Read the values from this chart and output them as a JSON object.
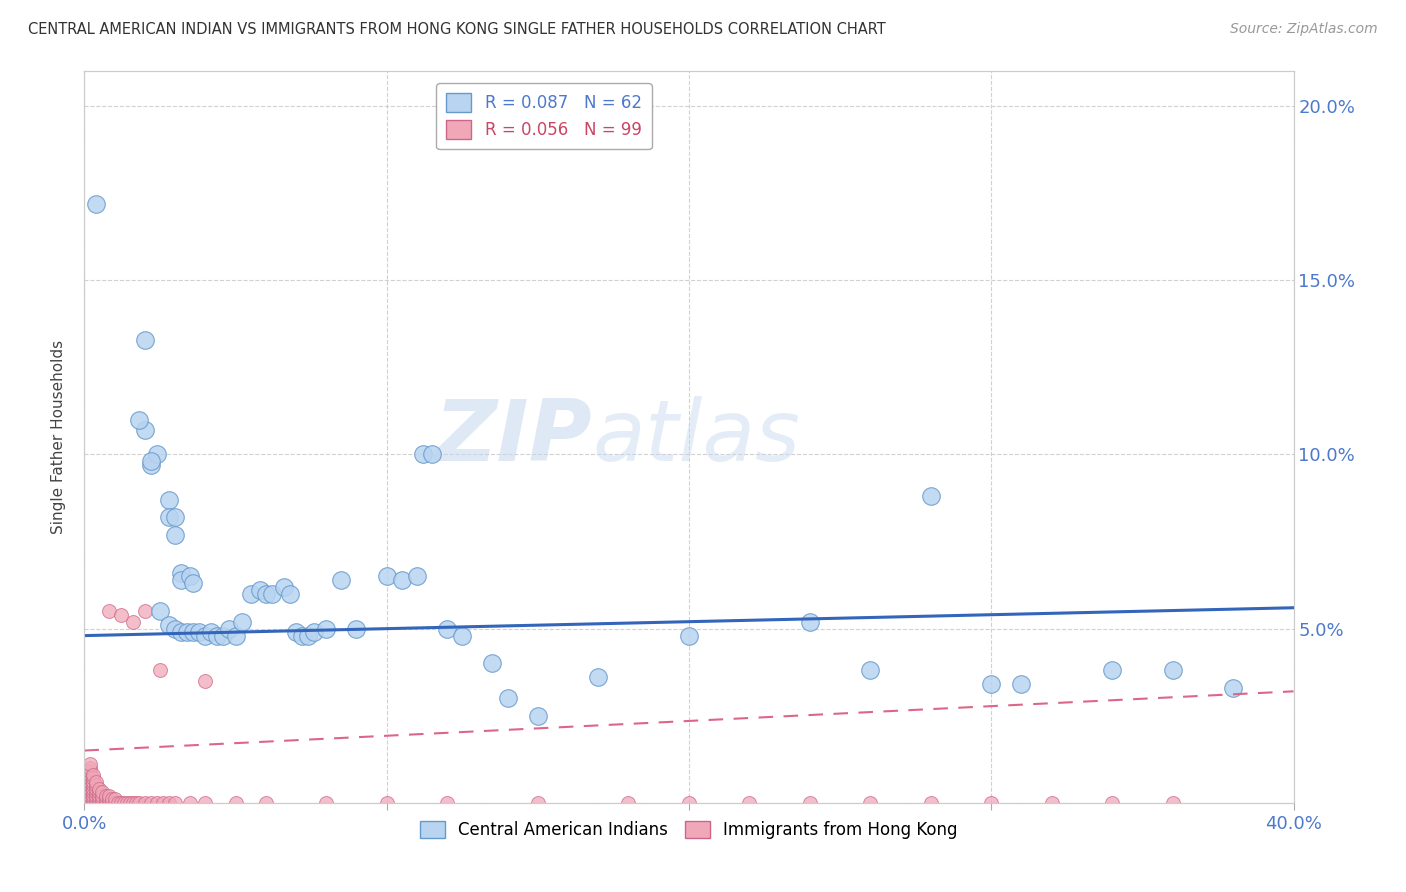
{
  "title": "CENTRAL AMERICAN INDIAN VS IMMIGRANTS FROM HONG KONG SINGLE FATHER HOUSEHOLDS CORRELATION CHART",
  "source": "Source: ZipAtlas.com",
  "ylabel": "Single Father Households",
  "xlim": [
    0.0,
    0.4
  ],
  "ylim": [
    0.0,
    0.21
  ],
  "blue_color": "#b8d4f0",
  "blue_edge": "#6699cc",
  "pink_color": "#f0a8b8",
  "pink_edge": "#cc6688",
  "blue_line_color": "#3366bb",
  "pink_line_color": "#dd6688",
  "watermark_zip": "ZIP",
  "watermark_atlas": "atlas",
  "blue_line_x": [
    0.0,
    0.4
  ],
  "blue_line_y": [
    0.048,
    0.056
  ],
  "pink_line_x": [
    0.0,
    0.4
  ],
  "pink_line_y": [
    0.015,
    0.032
  ],
  "blue_scatter": [
    [
      0.004,
      0.172
    ],
    [
      0.02,
      0.133
    ],
    [
      0.02,
      0.107
    ],
    [
      0.022,
      0.097
    ],
    [
      0.024,
      0.1
    ],
    [
      0.028,
      0.087
    ],
    [
      0.028,
      0.082
    ],
    [
      0.03,
      0.082
    ],
    [
      0.03,
      0.077
    ],
    [
      0.032,
      0.066
    ],
    [
      0.032,
      0.064
    ],
    [
      0.035,
      0.065
    ],
    [
      0.036,
      0.063
    ],
    [
      0.018,
      0.11
    ],
    [
      0.022,
      0.098
    ],
    [
      0.025,
      0.055
    ],
    [
      0.028,
      0.051
    ],
    [
      0.03,
      0.05
    ],
    [
      0.032,
      0.049
    ],
    [
      0.034,
      0.049
    ],
    [
      0.036,
      0.049
    ],
    [
      0.038,
      0.049
    ],
    [
      0.04,
      0.048
    ],
    [
      0.042,
      0.049
    ],
    [
      0.044,
      0.048
    ],
    [
      0.046,
      0.048
    ],
    [
      0.048,
      0.05
    ],
    [
      0.05,
      0.048
    ],
    [
      0.052,
      0.052
    ],
    [
      0.055,
      0.06
    ],
    [
      0.058,
      0.061
    ],
    [
      0.06,
      0.06
    ],
    [
      0.062,
      0.06
    ],
    [
      0.066,
      0.062
    ],
    [
      0.068,
      0.06
    ],
    [
      0.07,
      0.049
    ],
    [
      0.072,
      0.048
    ],
    [
      0.074,
      0.048
    ],
    [
      0.076,
      0.049
    ],
    [
      0.08,
      0.05
    ],
    [
      0.085,
      0.064
    ],
    [
      0.09,
      0.05
    ],
    [
      0.1,
      0.065
    ],
    [
      0.105,
      0.064
    ],
    [
      0.11,
      0.065
    ],
    [
      0.112,
      0.1
    ],
    [
      0.115,
      0.1
    ],
    [
      0.12,
      0.05
    ],
    [
      0.125,
      0.048
    ],
    [
      0.135,
      0.04
    ],
    [
      0.14,
      0.03
    ],
    [
      0.15,
      0.025
    ],
    [
      0.17,
      0.036
    ],
    [
      0.2,
      0.048
    ],
    [
      0.24,
      0.052
    ],
    [
      0.26,
      0.038
    ],
    [
      0.28,
      0.088
    ],
    [
      0.3,
      0.034
    ],
    [
      0.31,
      0.034
    ],
    [
      0.34,
      0.038
    ],
    [
      0.36,
      0.038
    ],
    [
      0.38,
      0.033
    ]
  ],
  "pink_scatter": [
    [
      0.0,
      0.0
    ],
    [
      0.0,
      0.001
    ],
    [
      0.001,
      0.0
    ],
    [
      0.001,
      0.001
    ],
    [
      0.001,
      0.002
    ],
    [
      0.001,
      0.003
    ],
    [
      0.001,
      0.004
    ],
    [
      0.001,
      0.005
    ],
    [
      0.001,
      0.006
    ],
    [
      0.001,
      0.007
    ],
    [
      0.001,
      0.008
    ],
    [
      0.001,
      0.009
    ],
    [
      0.002,
      0.0
    ],
    [
      0.002,
      0.001
    ],
    [
      0.002,
      0.002
    ],
    [
      0.002,
      0.003
    ],
    [
      0.002,
      0.004
    ],
    [
      0.002,
      0.005
    ],
    [
      0.002,
      0.006
    ],
    [
      0.002,
      0.007
    ],
    [
      0.002,
      0.008
    ],
    [
      0.002,
      0.009
    ],
    [
      0.002,
      0.01
    ],
    [
      0.002,
      0.011
    ],
    [
      0.003,
      0.0
    ],
    [
      0.003,
      0.001
    ],
    [
      0.003,
      0.002
    ],
    [
      0.003,
      0.003
    ],
    [
      0.003,
      0.004
    ],
    [
      0.003,
      0.005
    ],
    [
      0.003,
      0.006
    ],
    [
      0.003,
      0.007
    ],
    [
      0.003,
      0.008
    ],
    [
      0.004,
      0.0
    ],
    [
      0.004,
      0.001
    ],
    [
      0.004,
      0.002
    ],
    [
      0.004,
      0.003
    ],
    [
      0.004,
      0.004
    ],
    [
      0.004,
      0.005
    ],
    [
      0.004,
      0.006
    ],
    [
      0.005,
      0.0
    ],
    [
      0.005,
      0.001
    ],
    [
      0.005,
      0.002
    ],
    [
      0.005,
      0.003
    ],
    [
      0.005,
      0.004
    ],
    [
      0.006,
      0.0
    ],
    [
      0.006,
      0.001
    ],
    [
      0.006,
      0.002
    ],
    [
      0.006,
      0.003
    ],
    [
      0.007,
      0.0
    ],
    [
      0.007,
      0.001
    ],
    [
      0.007,
      0.002
    ],
    [
      0.008,
      0.0
    ],
    [
      0.008,
      0.001
    ],
    [
      0.008,
      0.002
    ],
    [
      0.009,
      0.0
    ],
    [
      0.009,
      0.001
    ],
    [
      0.01,
      0.0
    ],
    [
      0.01,
      0.001
    ],
    [
      0.011,
      0.0
    ],
    [
      0.012,
      0.0
    ],
    [
      0.013,
      0.0
    ],
    [
      0.014,
      0.0
    ],
    [
      0.015,
      0.0
    ],
    [
      0.016,
      0.0
    ],
    [
      0.017,
      0.0
    ],
    [
      0.018,
      0.0
    ],
    [
      0.02,
      0.0
    ],
    [
      0.022,
      0.0
    ],
    [
      0.024,
      0.0
    ],
    [
      0.026,
      0.0
    ],
    [
      0.028,
      0.0
    ],
    [
      0.008,
      0.055
    ],
    [
      0.012,
      0.054
    ],
    [
      0.016,
      0.052
    ],
    [
      0.02,
      0.055
    ],
    [
      0.025,
      0.038
    ],
    [
      0.03,
      0.0
    ],
    [
      0.035,
      0.0
    ],
    [
      0.04,
      0.0
    ],
    [
      0.05,
      0.0
    ],
    [
      0.06,
      0.0
    ],
    [
      0.08,
      0.0
    ],
    [
      0.1,
      0.0
    ],
    [
      0.12,
      0.0
    ],
    [
      0.15,
      0.0
    ],
    [
      0.18,
      0.0
    ],
    [
      0.2,
      0.0
    ],
    [
      0.22,
      0.0
    ],
    [
      0.24,
      0.0
    ],
    [
      0.26,
      0.0
    ],
    [
      0.28,
      0.0
    ],
    [
      0.3,
      0.0
    ],
    [
      0.32,
      0.0
    ],
    [
      0.34,
      0.0
    ],
    [
      0.36,
      0.0
    ],
    [
      0.04,
      0.035
    ]
  ],
  "background_color": "#ffffff",
  "grid_color": "#cccccc"
}
